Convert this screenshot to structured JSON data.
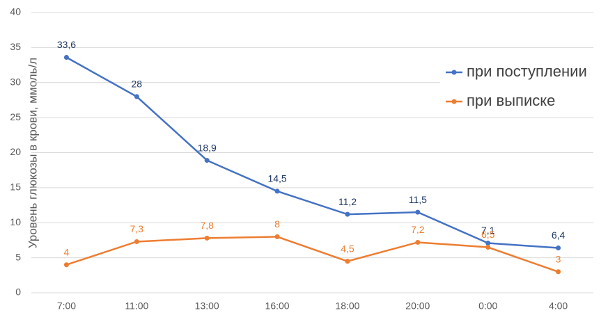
{
  "chart_data": {
    "type": "line",
    "y_label": "Уровень глюкозы в крови, ммоль/л",
    "categories": [
      "7:00",
      "11:00",
      "13:00",
      "16:00",
      "18:00",
      "20:00",
      "0:00",
      "4:00"
    ],
    "series": [
      {
        "name": "при поступлении",
        "color": "#4472c4",
        "label_color": "#203864",
        "values": [
          33.6,
          28,
          18.9,
          14.5,
          11.2,
          11.5,
          7.1,
          6.4
        ],
        "value_labels": [
          "33,6",
          "28",
          "18,9",
          "14,5",
          "11,2",
          "11,5",
          "7,1",
          "6,4"
        ]
      },
      {
        "name": "при выписке",
        "color": "#ed7d31",
        "label_color": "#ed7d31",
        "values": [
          4,
          7.3,
          7.8,
          8,
          4.5,
          7.2,
          6.5,
          3
        ],
        "value_labels": [
          "4",
          "7,3",
          "7,8",
          "8",
          "4,5",
          "7,2",
          "6,5",
          "3"
        ]
      }
    ],
    "ylim": [
      0,
      40
    ],
    "yticks": [
      0,
      5,
      10,
      15,
      20,
      25,
      30,
      35,
      40
    ],
    "grid": true,
    "legend": "right"
  }
}
